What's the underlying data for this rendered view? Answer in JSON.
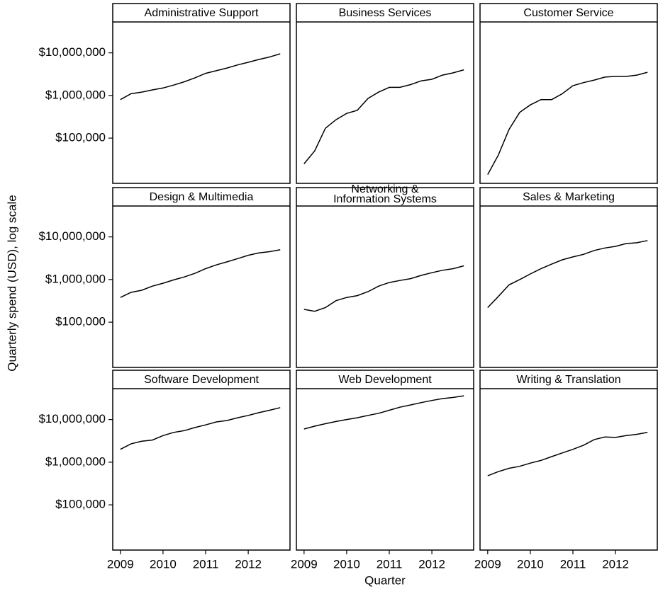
{
  "chart_data": {
    "type": "line",
    "ylabel": "Quarterly spend (USD), log scale",
    "xlabel": "Quarter",
    "yscale": "log",
    "color": "#000000",
    "ylim": [
      8700,
      53000000
    ],
    "yticks": [
      {
        "value": 100000,
        "label": "$100,000"
      },
      {
        "value": 1000000,
        "label": "$1,000,000"
      },
      {
        "value": 10000000,
        "label": "$10,000,000"
      }
    ],
    "xlim": [
      2008.82,
      2012.98
    ],
    "xticks": [
      2009,
      2010,
      2011,
      2012
    ],
    "panels": [
      {
        "title": "Administrative Support",
        "x": [
          2009,
          2009.25,
          2009.5,
          2009.75,
          2010,
          2010.25,
          2010.5,
          2010.75,
          2011,
          2011.25,
          2011.5,
          2011.75,
          2012,
          2012.25,
          2012.5,
          2012.75
        ],
        "values": [
          800000,
          1100000,
          1200000,
          1350000,
          1500000,
          1750000,
          2100000,
          2600000,
          3300000,
          3800000,
          4400000,
          5200000,
          6000000,
          7000000,
          8000000,
          9500000
        ]
      },
      {
        "title": "Business Services",
        "x": [
          2009,
          2009.25,
          2009.5,
          2009.75,
          2010,
          2010.25,
          2010.5,
          2010.75,
          2011,
          2011.25,
          2011.5,
          2011.75,
          2012,
          2012.25,
          2012.5,
          2012.75
        ],
        "values": [
          25000,
          50000,
          170000,
          270000,
          380000,
          450000,
          850000,
          1200000,
          1550000,
          1550000,
          1800000,
          2200000,
          2400000,
          3000000,
          3400000,
          4000000
        ]
      },
      {
        "title": "Customer Service",
        "x": [
          2009,
          2009.25,
          2009.5,
          2009.75,
          2010,
          2010.25,
          2010.5,
          2010.75,
          2011,
          2011.25,
          2011.5,
          2011.75,
          2012,
          2012.25,
          2012.5,
          2012.75
        ],
        "values": [
          14000,
          40000,
          160000,
          400000,
          600000,
          800000,
          800000,
          1100000,
          1700000,
          2000000,
          2300000,
          2700000,
          2800000,
          2800000,
          3000000,
          3500000
        ]
      },
      {
        "title": "Design & Multimedia",
        "x": [
          2009,
          2009.25,
          2009.5,
          2009.75,
          2010,
          2010.25,
          2010.5,
          2010.75,
          2011,
          2011.25,
          2011.5,
          2011.75,
          2012,
          2012.25,
          2012.5,
          2012.75
        ],
        "values": [
          380000,
          500000,
          560000,
          700000,
          820000,
          980000,
          1150000,
          1400000,
          1800000,
          2200000,
          2600000,
          3100000,
          3700000,
          4200000,
          4500000,
          5000000
        ]
      },
      {
        "title": [
          "Networking &",
          "Information Systems"
        ],
        "x": [
          2009,
          2009.25,
          2009.5,
          2009.75,
          2010,
          2010.25,
          2010.5,
          2010.75,
          2011,
          2011.25,
          2011.5,
          2011.75,
          2012,
          2012.25,
          2012.5,
          2012.75
        ],
        "values": [
          200000,
          180000,
          220000,
          320000,
          380000,
          420000,
          520000,
          700000,
          850000,
          950000,
          1050000,
          1250000,
          1450000,
          1650000,
          1800000,
          2100000
        ]
      },
      {
        "title": "Sales & Marketing",
        "x": [
          2009,
          2009.25,
          2009.5,
          2009.75,
          2010,
          2010.25,
          2010.5,
          2010.75,
          2011,
          2011.25,
          2011.5,
          2011.75,
          2012,
          2012.25,
          2012.5,
          2012.75
        ],
        "values": [
          220000,
          400000,
          750000,
          1000000,
          1350000,
          1800000,
          2300000,
          2900000,
          3400000,
          3900000,
          4800000,
          5500000,
          6000000,
          7000000,
          7300000,
          8200000
        ]
      },
      {
        "title": "Software Development",
        "x": [
          2009,
          2009.25,
          2009.5,
          2009.75,
          2010,
          2010.25,
          2010.5,
          2010.75,
          2011,
          2011.25,
          2011.5,
          2011.75,
          2012,
          2012.25,
          2012.5,
          2012.75
        ],
        "values": [
          2000000,
          2700000,
          3100000,
          3300000,
          4200000,
          5000000,
          5500000,
          6500000,
          7500000,
          8800000,
          9500000,
          11000000,
          12500000,
          14500000,
          16500000,
          19000000
        ]
      },
      {
        "title": "Web Development",
        "x": [
          2009,
          2009.25,
          2009.5,
          2009.75,
          2010,
          2010.25,
          2010.5,
          2010.75,
          2011,
          2011.25,
          2011.5,
          2011.75,
          2012,
          2012.25,
          2012.5,
          2012.75
        ],
        "values": [
          6000000,
          7000000,
          8000000,
          9000000,
          10000000,
          11000000,
          12500000,
          14000000,
          16500000,
          19500000,
          22000000,
          25000000,
          28000000,
          31000000,
          33000000,
          36000000
        ]
      },
      {
        "title": "Writing & Translation",
        "x": [
          2009,
          2009.25,
          2009.5,
          2009.75,
          2010,
          2010.25,
          2010.5,
          2010.75,
          2011,
          2011.25,
          2011.5,
          2011.75,
          2012,
          2012.25,
          2012.5,
          2012.75
        ],
        "values": [
          480000,
          600000,
          720000,
          800000,
          950000,
          1100000,
          1350000,
          1650000,
          2000000,
          2500000,
          3400000,
          3900000,
          3800000,
          4200000,
          4500000,
          5000000
        ]
      }
    ]
  }
}
